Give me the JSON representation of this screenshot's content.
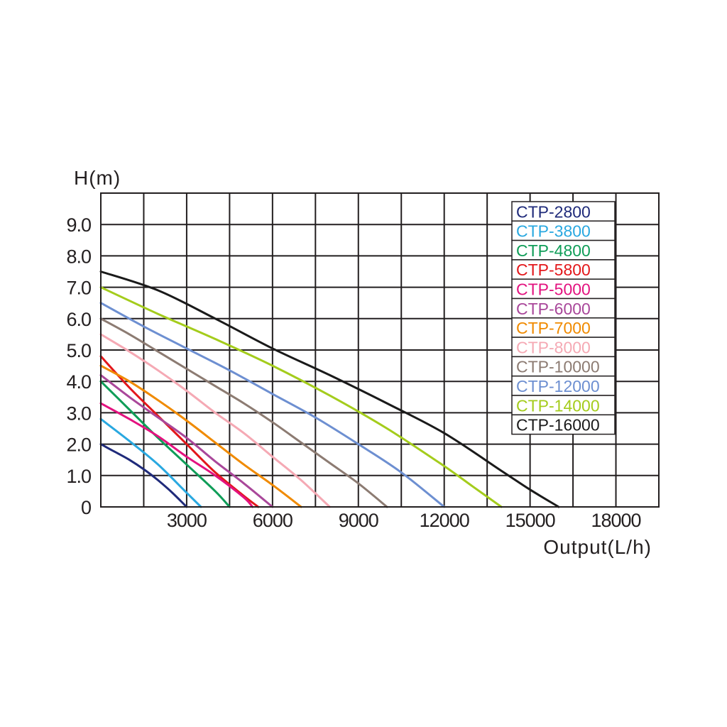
{
  "chart_data": {
    "type": "line",
    "ylabel": "H(m)",
    "xlabel": "Output(L/h)",
    "xlim": [
      0,
      19500
    ],
    "ylim": [
      0,
      10
    ],
    "y_ticks": [
      "9.0",
      "8.0",
      "7.0",
      "6.0",
      "5.0",
      "4.0",
      "3.0",
      "2.0",
      "1.0",
      "0"
    ],
    "y_tick_values": [
      9,
      8,
      7,
      6,
      5,
      4,
      3,
      2,
      1,
      0
    ],
    "x_ticks": [
      "3000",
      "6000",
      "9000",
      "12000",
      "15000",
      "18000"
    ],
    "x_tick_values": [
      3000,
      6000,
      9000,
      12000,
      15000,
      18000
    ],
    "grid": true,
    "legend_position": "top-right",
    "series": [
      {
        "name": "CTP-2800",
        "color": "#1f2a7a",
        "x": [
          0,
          500,
          1000,
          1500,
          2000,
          2500,
          3000
        ],
        "y": [
          2.0,
          1.75,
          1.5,
          1.2,
          0.85,
          0.45,
          0
        ]
      },
      {
        "name": "CTP-3800",
        "color": "#29a8e0",
        "x": [
          0,
          1000,
          2000,
          3000,
          3500
        ],
        "y": [
          2.8,
          2.1,
          1.35,
          0.45,
          0
        ]
      },
      {
        "name": "CTP-4800",
        "color": "#0f9d58",
        "x": [
          0,
          1000,
          2000,
          3000,
          4000,
          4500
        ],
        "y": [
          4.0,
          3.1,
          2.2,
          1.35,
          0.5,
          0
        ]
      },
      {
        "name": "CTP-5800",
        "color": "#e3171b",
        "x": [
          0,
          1000,
          2000,
          3000,
          4000,
          5000,
          5500
        ],
        "y": [
          4.8,
          3.8,
          2.9,
          2.0,
          1.1,
          0.35,
          0
        ]
      },
      {
        "name": "CTP-5000",
        "color": "#e3127f",
        "x": [
          0,
          1000,
          2000,
          3000,
          4000,
          5000,
          5300
        ],
        "y": [
          3.3,
          2.8,
          2.25,
          1.6,
          1.0,
          0.3,
          0
        ]
      },
      {
        "name": "CTP-6000",
        "color": "#a9479a",
        "x": [
          0,
          1000,
          2000,
          3000,
          4000,
          5000,
          6000
        ],
        "y": [
          4.2,
          3.5,
          2.85,
          2.2,
          1.45,
          0.75,
          0
        ]
      },
      {
        "name": "CTP-7000",
        "color": "#f08a00",
        "x": [
          0,
          1000,
          2000,
          3000,
          4000,
          5000,
          6000,
          7000
        ],
        "y": [
          4.5,
          4.0,
          3.4,
          2.75,
          2.05,
          1.35,
          0.7,
          0
        ]
      },
      {
        "name": "CTP-8000",
        "color": "#f5a9b4",
        "x": [
          0,
          1000,
          2000,
          3000,
          4000,
          5000,
          6000,
          7000,
          8000
        ],
        "y": [
          5.5,
          4.95,
          4.35,
          3.7,
          3.0,
          2.35,
          1.6,
          0.85,
          0
        ]
      },
      {
        "name": "CTP-10000",
        "color": "#8c7b72",
        "x": [
          0,
          1000,
          2000,
          3000,
          4000,
          5000,
          6000,
          7000,
          8000,
          9000,
          10000
        ],
        "y": [
          6.0,
          5.5,
          4.95,
          4.4,
          3.85,
          3.3,
          2.7,
          2.05,
          1.4,
          0.75,
          0
        ]
      },
      {
        "name": "CTP-12000",
        "color": "#6d8fd1",
        "x": [
          0,
          1500,
          3000,
          4500,
          6000,
          7500,
          9000,
          10500,
          12000
        ],
        "y": [
          6.5,
          5.75,
          5.05,
          4.35,
          3.6,
          2.85,
          2.0,
          1.1,
          0
        ]
      },
      {
        "name": "CTP-14000",
        "color": "#a4cc1c",
        "x": [
          0,
          2000,
          4000,
          6000,
          8000,
          10000,
          12000,
          13000,
          14000
        ],
        "y": [
          7.0,
          6.15,
          5.35,
          4.5,
          3.55,
          2.5,
          1.3,
          0.65,
          0
        ]
      },
      {
        "name": "CTP-16000",
        "color": "#1a1a1a",
        "x": [
          0,
          2000,
          4000,
          6000,
          8000,
          10000,
          12000,
          14000,
          15000,
          16000
        ],
        "y": [
          7.5,
          6.9,
          6.0,
          5.05,
          4.2,
          3.3,
          2.35,
          1.15,
          0.55,
          0
        ]
      }
    ]
  }
}
